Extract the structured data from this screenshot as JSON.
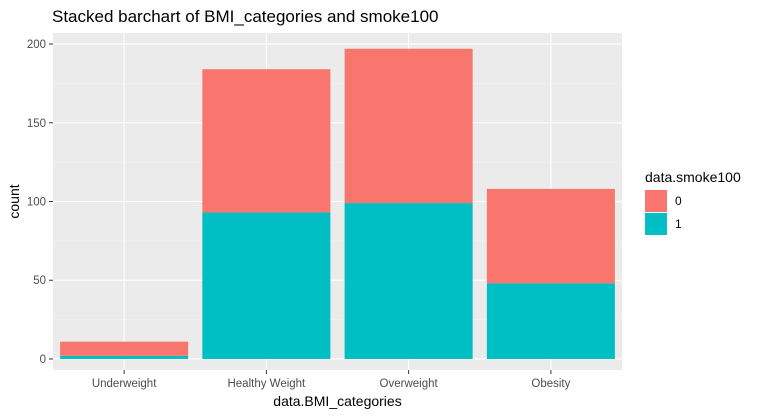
{
  "chart_data": {
    "type": "bar",
    "stacked": true,
    "title": "Stacked barchart of BMI_categories and smoke100",
    "xlabel": "data.BMI_categories",
    "ylabel": "count",
    "categories": [
      "Underweight",
      "Healthy Weight",
      "Overweight",
      "Obesity"
    ],
    "series": [
      {
        "name": "1",
        "values": [
          2,
          93,
          99,
          48
        ]
      },
      {
        "name": "0",
        "values": [
          9,
          91,
          98,
          60
        ]
      }
    ],
    "ylim": [
      -7,
      207
    ],
    "yticks": [
      0,
      50,
      100,
      150,
      200
    ],
    "grid": true,
    "legend": {
      "title": "data.smoke100",
      "placement": "right",
      "items": [
        "0",
        "1"
      ]
    },
    "colors": {
      "0": "#F8766D",
      "1": "#00BFC4",
      "panel": "#EBEBEB",
      "grid_major": "#FFFFFF",
      "grid_minor": "#F2F2F2"
    }
  }
}
